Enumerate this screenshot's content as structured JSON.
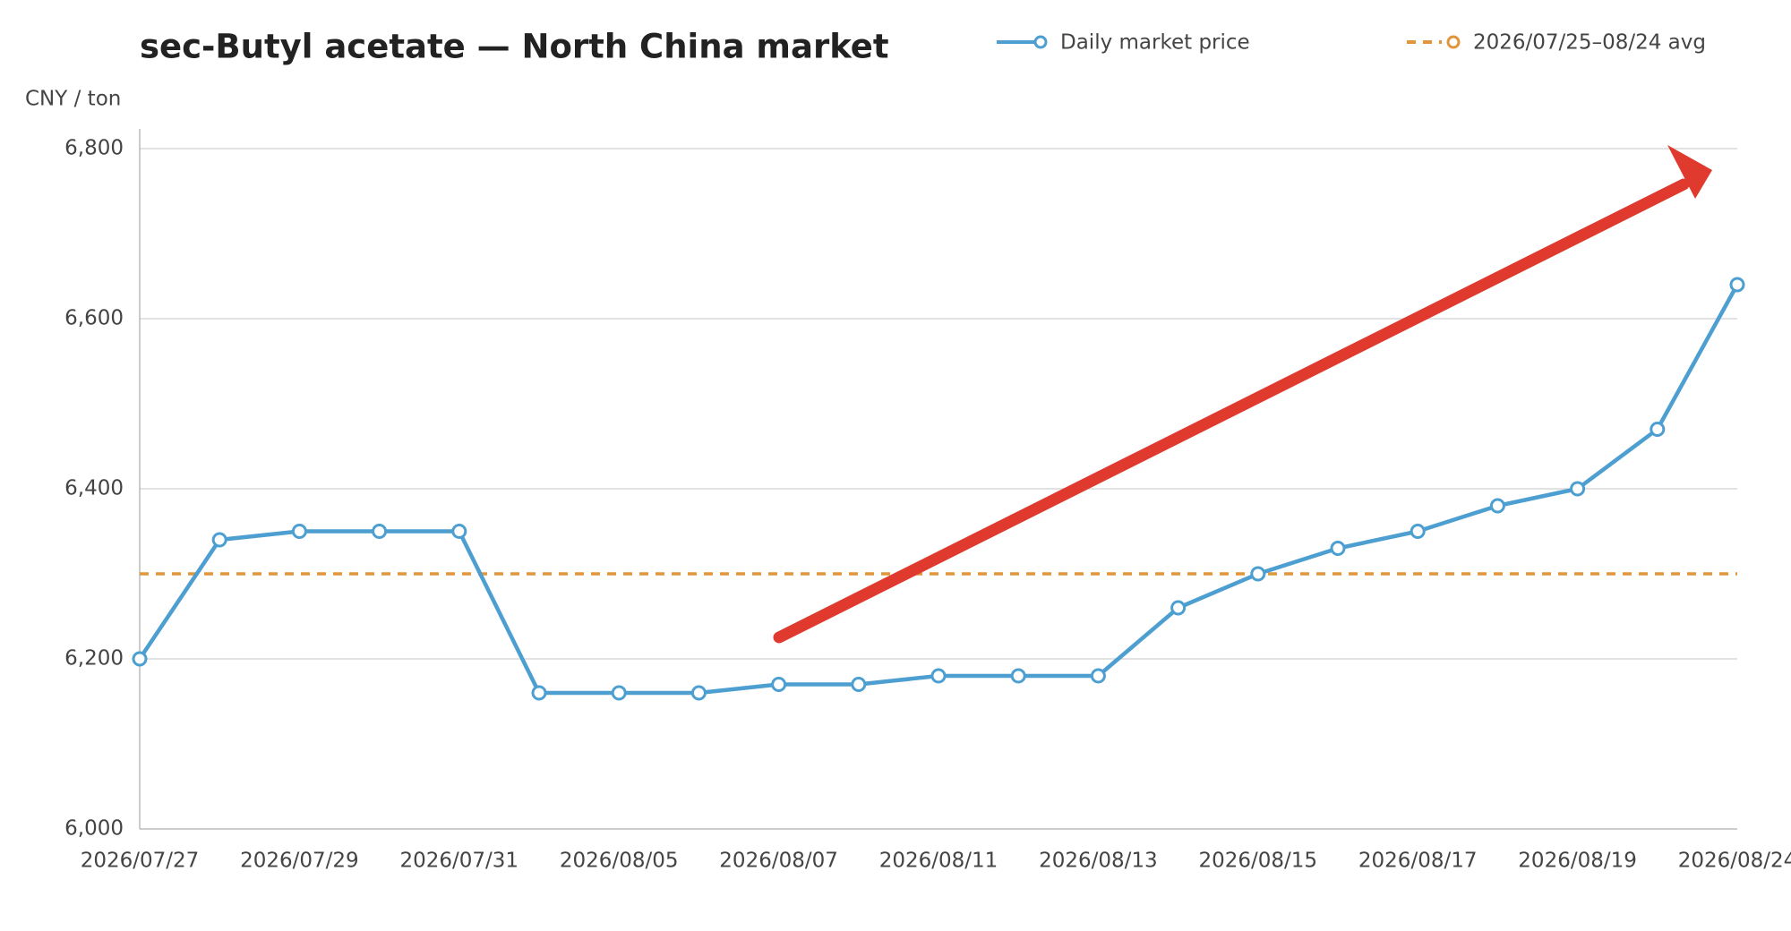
{
  "chart_data": {
    "type": "line",
    "title": "sec-Butyl acetate — North China market",
    "y_label": "CNY / ton",
    "categories": [
      "2026/07/27",
      null,
      "2026/07/29",
      null,
      "2026/07/31",
      null,
      "2026/08/05",
      null,
      "2026/08/07",
      null,
      "2026/08/11",
      null,
      "2026/08/13",
      null,
      "2026/08/15",
      null,
      "2026/08/17",
      null,
      "2026/08/19",
      null,
      "2026/08/24"
    ],
    "series": [
      {
        "name": "Daily market price",
        "color": "#4c9fd0",
        "values": [
          6200,
          6340,
          6350,
          6350,
          6350,
          6160,
          6160,
          6160,
          6170,
          6170,
          6180,
          6180,
          6180,
          6260,
          6300,
          6330,
          6350,
          6380,
          6400,
          6470,
          6640
        ]
      }
    ],
    "avg_line": {
      "name": "2026/07/25–08/24 avg",
      "value": 6300,
      "color": "#e0963a"
    },
    "ylim": [
      6000,
      6800
    ],
    "yticks": [
      {
        "value": 6000,
        "label": "6,000"
      },
      {
        "value": 6200,
        "label": "6,200"
      },
      {
        "value": 6400,
        "label": "6,400"
      },
      {
        "value": 6600,
        "label": "6,600"
      },
      {
        "value": 6800,
        "label": "6,800"
      }
    ],
    "grid": true
  }
}
